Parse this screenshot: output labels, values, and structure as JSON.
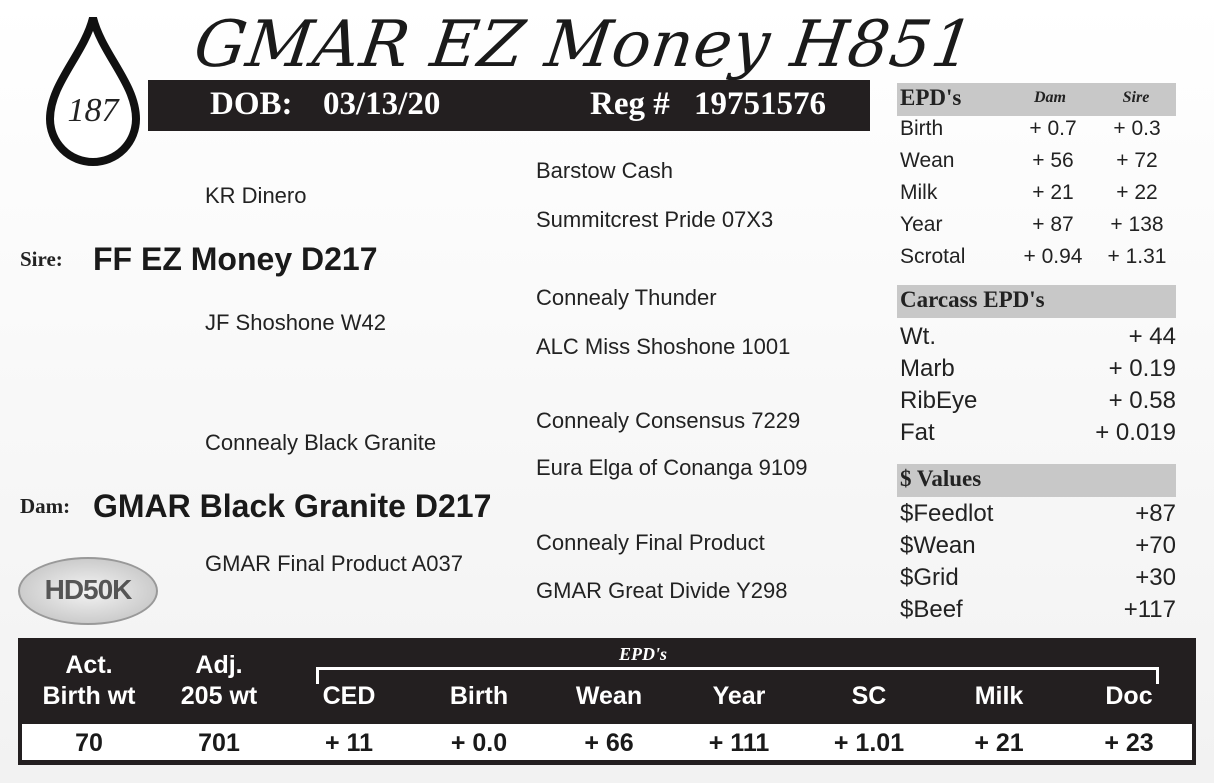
{
  "lot_number": "187",
  "title": "GMAR EZ Money H851",
  "dob_label": "DOB:",
  "dob": "03/13/20",
  "reg_label": "Reg #",
  "reg": "19751576",
  "pedigree": {
    "sire_label": "Sire:",
    "sire": "FF EZ Money D217",
    "dam_label": "Dam:",
    "dam": "GMAR Black Granite D217",
    "sire_sire": "KR Dinero",
    "sire_sire_sire": "Barstow Cash",
    "sire_sire_dam": "Summitcrest Pride 07X3",
    "sire_dam": "JF Shoshone W42",
    "sire_dam_sire": "Connealy Thunder",
    "sire_dam_dam": "ALC Miss Shoshone 1001",
    "dam_sire": "Connealy Black Granite",
    "dam_sire_sire": "Connealy Consensus 7229",
    "dam_sire_dam": "Eura Elga of Conanga 9109",
    "dam_dam": "GMAR Final Product A037",
    "dam_dam_sire": "Connealy Final Product",
    "dam_dam_dam": "GMAR Great Divide Y298"
  },
  "logo_text": "HD50K",
  "epds": {
    "title": "EPD's",
    "dam_label": "Dam",
    "sire_label": "Sire",
    "rows": [
      {
        "name": "Birth",
        "dam": "+ 0.7",
        "sire": "+ 0.3"
      },
      {
        "name": "Wean",
        "dam": "+ 56",
        "sire": "+ 72"
      },
      {
        "name": "Milk",
        "dam": "+ 21",
        "sire": "+ 22"
      },
      {
        "name": "Year",
        "dam": "+ 87",
        "sire": "+ 138"
      },
      {
        "name": "Scrotal",
        "dam": "+ 0.94",
        "sire": "+ 1.31"
      }
    ]
  },
  "carcass": {
    "title": "Carcass EPD's",
    "rows": [
      {
        "name": "Wt.",
        "value": "+ 44"
      },
      {
        "name": "Marb",
        "value": "+ 0.19"
      },
      {
        "name": "RibEye",
        "value": "+ 0.58"
      },
      {
        "name": "Fat",
        "value": "+ 0.019"
      }
    ]
  },
  "dollar": {
    "title": "$ Values",
    "rows": [
      {
        "name": "$Feedlot",
        "value": "+87"
      },
      {
        "name": "$Wean",
        "value": "+70"
      },
      {
        "name": "$Grid",
        "value": "+30"
      },
      {
        "name": "$Beef",
        "value": "+117"
      }
    ]
  },
  "bottom": {
    "epd_label": "EPD's",
    "columns": [
      {
        "l1": "Act.",
        "l2": "Birth wt",
        "value": "70"
      },
      {
        "l1": "Adj.",
        "l2": "205 wt",
        "value": "701"
      },
      {
        "l1": "",
        "l2": "CED",
        "value": "+ 11"
      },
      {
        "l1": "",
        "l2": "Birth",
        "value": "+ 0.0"
      },
      {
        "l1": "",
        "l2": "Wean",
        "value": "+ 66"
      },
      {
        "l1": "",
        "l2": "Year",
        "value": "+ 111"
      },
      {
        "l1": "",
        "l2": "SC",
        "value": "+ 1.01"
      },
      {
        "l1": "",
        "l2": "Milk",
        "value": "+ 21"
      },
      {
        "l1": "",
        "l2": "Doc",
        "value": "+ 23"
      }
    ]
  }
}
